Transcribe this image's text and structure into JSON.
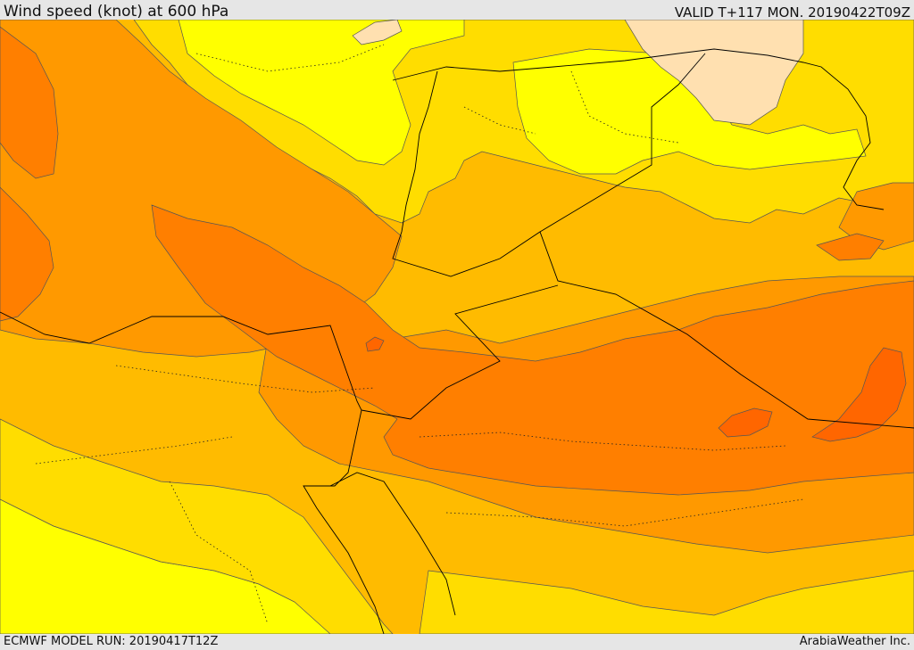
{
  "header": {
    "title": "Wind speed (knot) at 600 hPa",
    "valid": "VALID T+117 MON. 20190422T09Z"
  },
  "footer": {
    "model_run": "ECMWF MODEL RUN: 20190417T12Z",
    "credit": "ArabiaWeather Inc."
  },
  "colors": {
    "band_0": "#ffe0b0",
    "band_1": "#ffff00",
    "band_2": "#ffdd00",
    "band_3": "#ffbb00",
    "band_4": "#ff9900",
    "band_5": "#ff7f00",
    "band_6": "#ff6600"
  }
}
